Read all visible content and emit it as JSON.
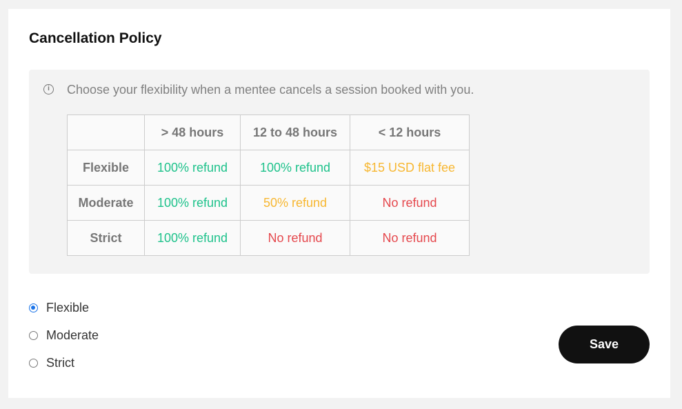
{
  "title": "Cancellation Policy",
  "info": {
    "icon": "info-icon",
    "text": "Choose your flexibility when a mentee cancels a session booked with you."
  },
  "colors": {
    "green": "#1ec28b",
    "orange": "#f7b731",
    "red": "#e5484d",
    "accent": "#1a73e8"
  },
  "table": {
    "headers": [
      "",
      "> 48 hours",
      "12 to 48 hours",
      "< 12 hours"
    ],
    "rows": [
      {
        "label": "Flexible",
        "cells": [
          {
            "text": "100% refund",
            "tone": "green"
          },
          {
            "text": "100% refund",
            "tone": "green"
          },
          {
            "text": "$15 USD flat fee",
            "tone": "orange"
          }
        ]
      },
      {
        "label": "Moderate",
        "cells": [
          {
            "text": "100% refund",
            "tone": "green"
          },
          {
            "text": "50% refund",
            "tone": "orange"
          },
          {
            "text": "No refund",
            "tone": "red"
          }
        ]
      },
      {
        "label": "Strict",
        "cells": [
          {
            "text": "100% refund",
            "tone": "green"
          },
          {
            "text": "No refund",
            "tone": "red"
          },
          {
            "text": "No refund",
            "tone": "red"
          }
        ]
      }
    ]
  },
  "options": [
    {
      "label": "Flexible",
      "selected": true
    },
    {
      "label": "Moderate",
      "selected": false
    },
    {
      "label": "Strict",
      "selected": false
    }
  ],
  "save_label": "Save"
}
